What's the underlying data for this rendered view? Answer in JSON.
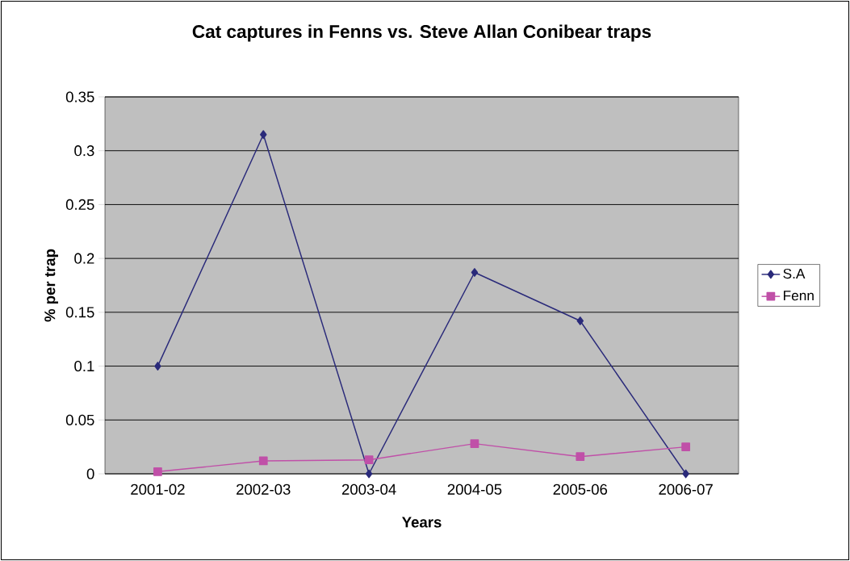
{
  "chart_data": {
    "type": "line",
    "title": "Cat captures in Fenns vs. Steve Allan Conibear traps",
    "xlabel": "Years",
    "ylabel": "% per trap",
    "categories": [
      "2001-02",
      "2002-03",
      "2003-04",
      "2004-05",
      "2005-06",
      "2006-07"
    ],
    "series": [
      {
        "name": "S.A",
        "color": "#2a2a7a",
        "marker": "diamond",
        "values": [
          0.1,
          0.315,
          0,
          0.187,
          0.142,
          0
        ]
      },
      {
        "name": "Fenn",
        "color": "#c050a8",
        "marker": "square",
        "values": [
          0.002,
          0.012,
          0.013,
          0.028,
          0.016,
          0.025
        ]
      }
    ],
    "ylim": [
      0,
      0.35
    ],
    "yticks": [
      0,
      0.05,
      0.1,
      0.15,
      0.2,
      0.25,
      0.3,
      0.35
    ],
    "grid": "y",
    "legend": "right"
  }
}
